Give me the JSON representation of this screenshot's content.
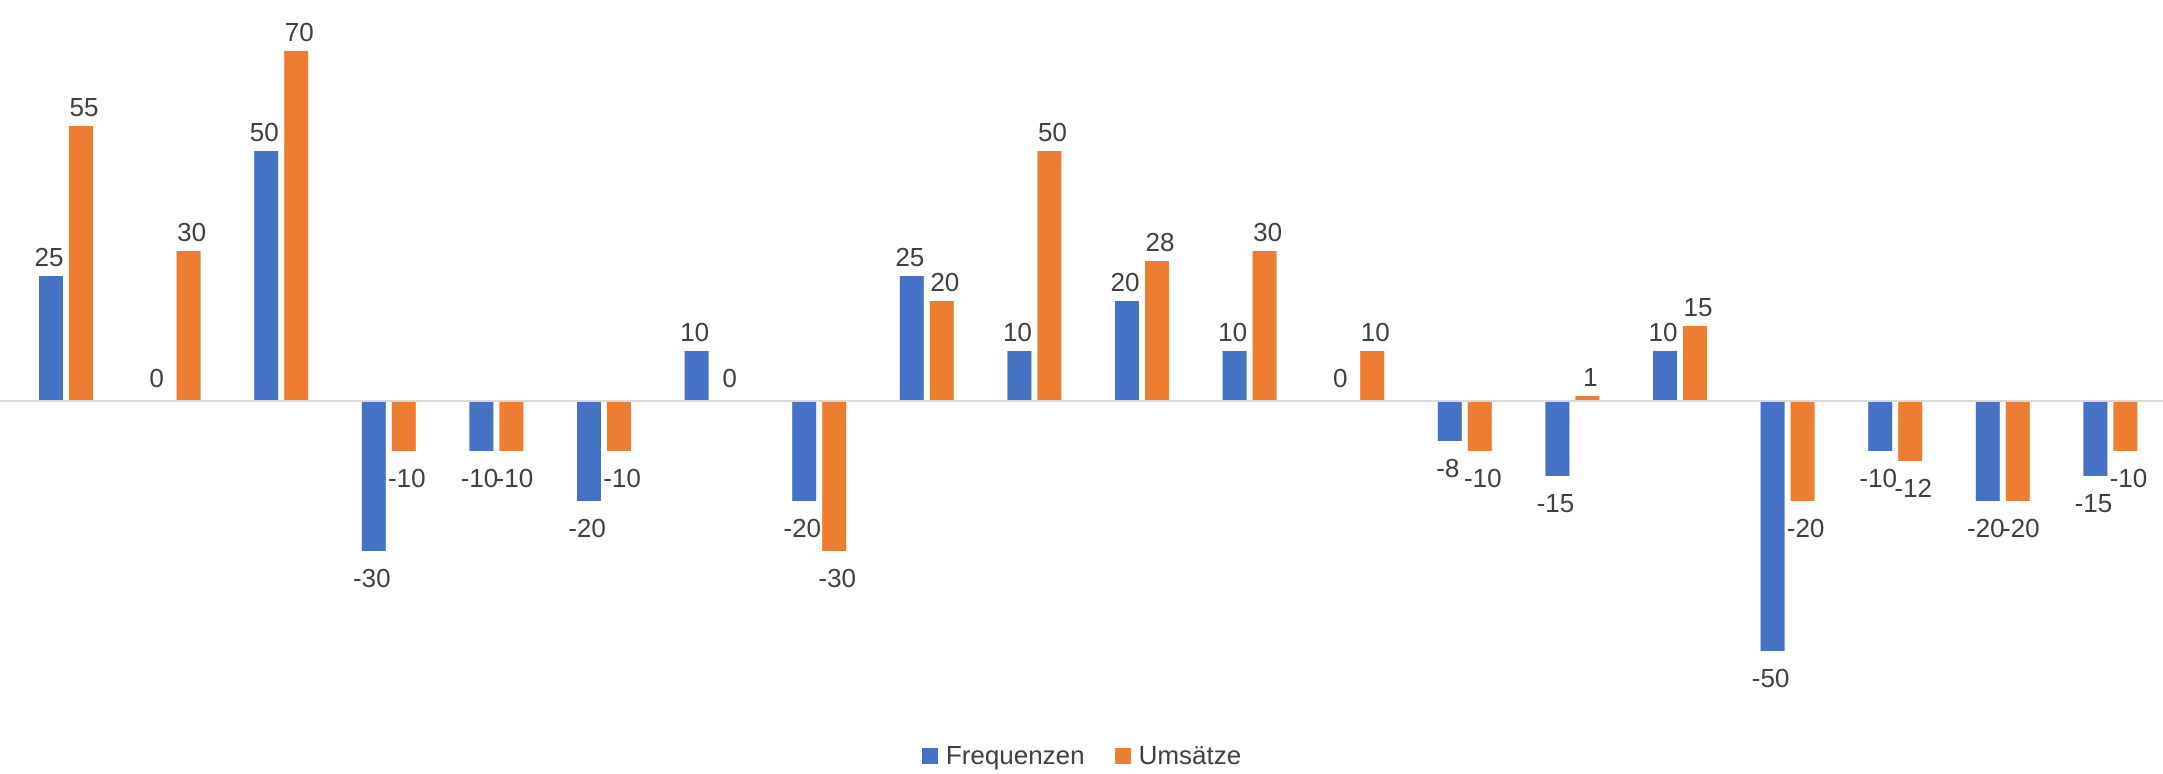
{
  "chart_data": {
    "type": "bar",
    "categories": [
      "",
      "",
      "",
      "",
      "",
      "",
      "",
      "",
      "",
      "",
      "",
      "",
      "",
      "",
      "",
      "",
      "",
      "",
      "",
      ""
    ],
    "series": [
      {
        "name": "Frequenzen",
        "color": "#4472C4",
        "values": [
          25,
          0,
          50,
          -30,
          -10,
          -20,
          10,
          -20,
          25,
          10,
          20,
          10,
          0,
          -8,
          -15,
          10,
          -50,
          -10,
          -20,
          -15
        ]
      },
      {
        "name": "Umsätze",
        "color": "#ED7D31",
        "values": [
          55,
          30,
          70,
          -10,
          -10,
          -10,
          0,
          -30,
          20,
          50,
          28,
          30,
          10,
          -10,
          1,
          15,
          -20,
          -12,
          -20,
          -10
        ]
      }
    ],
    "ylim": [
      -50,
      70
    ],
    "grid": false,
    "axis_line_color": "#D9D9D9",
    "legend_position": "bottom",
    "data_labels": true
  }
}
